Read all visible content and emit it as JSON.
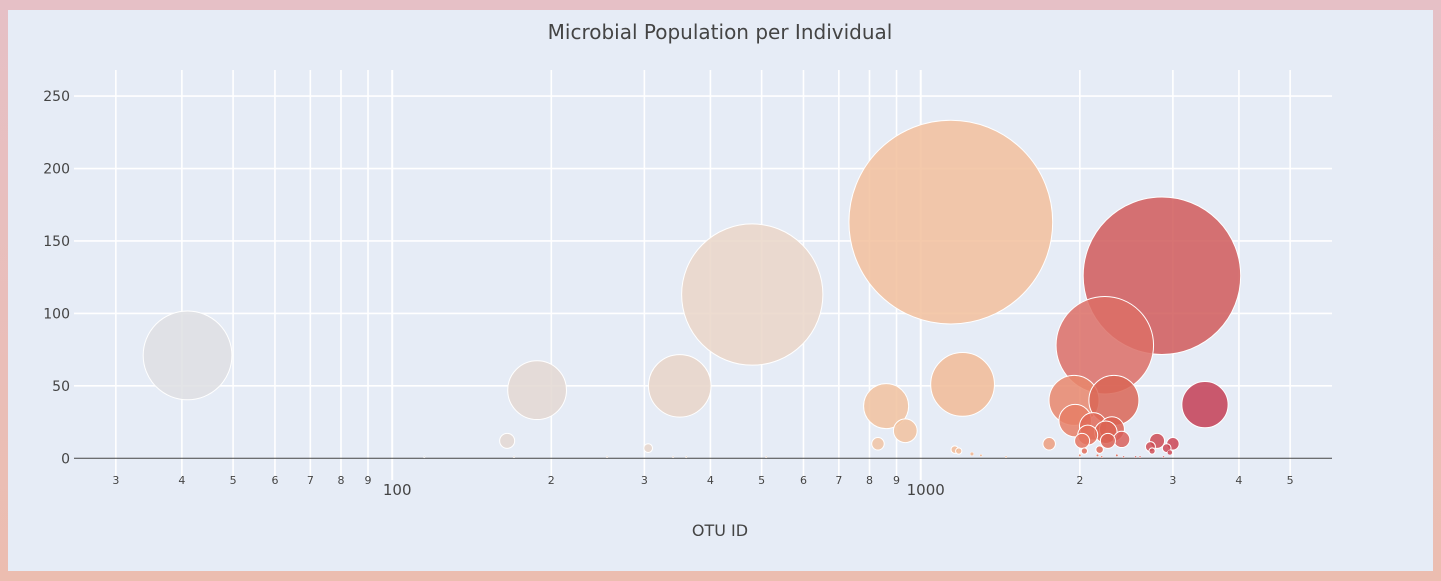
{
  "chart_data": {
    "type": "scatter",
    "title": "Microbial Population per Individual",
    "xlabel": "OTU ID",
    "ylabel": "",
    "x_scale": "log",
    "xlim": [
      25,
      6000
    ],
    "ylim": [
      -15,
      268
    ],
    "yticks": [
      0,
      50,
      100,
      150,
      200,
      250
    ],
    "xticks_major": [
      {
        "value": 100,
        "label": "100"
      },
      {
        "value": 1000,
        "label": "1000"
      }
    ],
    "xticks_minor": [
      {
        "value": 30,
        "label": "3"
      },
      {
        "value": 40,
        "label": "4"
      },
      {
        "value": 50,
        "label": "5"
      },
      {
        "value": 60,
        "label": "6"
      },
      {
        "value": 70,
        "label": "7"
      },
      {
        "value": 80,
        "label": "8"
      },
      {
        "value": 90,
        "label": "9"
      },
      {
        "value": 200,
        "label": "2"
      },
      {
        "value": 300,
        "label": "3"
      },
      {
        "value": 400,
        "label": "4"
      },
      {
        "value": 500,
        "label": "5"
      },
      {
        "value": 600,
        "label": "6"
      },
      {
        "value": 700,
        "label": "7"
      },
      {
        "value": 800,
        "label": "8"
      },
      {
        "value": 900,
        "label": "9"
      },
      {
        "value": 2000,
        "label": "2"
      },
      {
        "value": 3000,
        "label": "3"
      },
      {
        "value": 4000,
        "label": "4"
      },
      {
        "value": 5000,
        "label": "5"
      }
    ],
    "grid": true,
    "marker_colorscale": [
      "#dcdcdc",
      "#e8d5c8",
      "#f2c09c",
      "#ef9b78",
      "#e0614a",
      "#d05b5b",
      "#c33e55"
    ],
    "points": [
      {
        "x": 41,
        "y": 71,
        "size": 71,
        "color": "#dedfe3"
      },
      {
        "x": 115,
        "y": 1,
        "size": 1,
        "color": "#dedfe3"
      },
      {
        "x": 165,
        "y": 12,
        "size": 12,
        "color": "#e3d8d2"
      },
      {
        "x": 170,
        "y": 1,
        "size": 1,
        "color": "#e3d8d2"
      },
      {
        "x": 188,
        "y": 47,
        "size": 47,
        "color": "#e3d8d2"
      },
      {
        "x": 255,
        "y": 1,
        "size": 1,
        "color": "#e6d6cb"
      },
      {
        "x": 305,
        "y": 7,
        "size": 7,
        "color": "#e6d6cb"
      },
      {
        "x": 340,
        "y": 1,
        "size": 1,
        "color": "#e8d5c8"
      },
      {
        "x": 350,
        "y": 50,
        "size": 50,
        "color": "#e8d5c8"
      },
      {
        "x": 360,
        "y": 1,
        "size": 1,
        "color": "#e8d5c8"
      },
      {
        "x": 480,
        "y": 113,
        "size": 113,
        "color": "#ead6c8"
      },
      {
        "x": 510,
        "y": 1,
        "size": 1,
        "color": "#ead6c8"
      },
      {
        "x": 830,
        "y": 10,
        "size": 10,
        "color": "#f0c4a5"
      },
      {
        "x": 860,
        "y": 36,
        "size": 36,
        "color": "#f1c29f"
      },
      {
        "x": 935,
        "y": 19,
        "size": 19,
        "color": "#f1c29f"
      },
      {
        "x": 1140,
        "y": 163,
        "size": 163,
        "color": "#f2c09c"
      },
      {
        "x": 1160,
        "y": 6,
        "size": 6,
        "color": "#f2bc98"
      },
      {
        "x": 1180,
        "y": 5,
        "size": 5,
        "color": "#f2bc98"
      },
      {
        "x": 1200,
        "y": 51,
        "size": 51,
        "color": "#f1bb97"
      },
      {
        "x": 1250,
        "y": 3,
        "size": 3,
        "color": "#f0b692"
      },
      {
        "x": 1300,
        "y": 2,
        "size": 2,
        "color": "#f0b692"
      },
      {
        "x": 1450,
        "y": 1,
        "size": 1,
        "color": "#efb08c"
      },
      {
        "x": 1750,
        "y": 10,
        "size": 10,
        "color": "#ec9f7f"
      },
      {
        "x": 1950,
        "y": 40,
        "size": 40,
        "color": "#e8876c"
      },
      {
        "x": 1960,
        "y": 26,
        "size": 26,
        "color": "#e67f66"
      },
      {
        "x": 2000,
        "y": 2,
        "size": 2,
        "color": "#e67f66"
      },
      {
        "x": 2020,
        "y": 12,
        "size": 12,
        "color": "#e47460"
      },
      {
        "x": 2040,
        "y": 5,
        "size": 5,
        "color": "#e2705c"
      },
      {
        "x": 2070,
        "y": 16,
        "size": 16,
        "color": "#e26e5a"
      },
      {
        "x": 2120,
        "y": 22,
        "size": 22,
        "color": "#e06a58"
      },
      {
        "x": 2160,
        "y": 2,
        "size": 2,
        "color": "#e06a58"
      },
      {
        "x": 2180,
        "y": 6,
        "size": 6,
        "color": "#df6856"
      },
      {
        "x": 2200,
        "y": 1,
        "size": 1,
        "color": "#df6856"
      },
      {
        "x": 2230,
        "y": 78,
        "size": 78,
        "color": "#dc6f66"
      },
      {
        "x": 2240,
        "y": 18,
        "size": 18,
        "color": "#dc6454"
      },
      {
        "x": 2260,
        "y": 12,
        "size": 12,
        "color": "#db6253"
      },
      {
        "x": 2300,
        "y": 20,
        "size": 20,
        "color": "#da6152"
      },
      {
        "x": 2320,
        "y": 40,
        "size": 40,
        "color": "#d96656"
      },
      {
        "x": 2350,
        "y": 2,
        "size": 2,
        "color": "#d96656"
      },
      {
        "x": 2400,
        "y": 13,
        "size": 13,
        "color": "#d8605a"
      },
      {
        "x": 2420,
        "y": 1,
        "size": 1,
        "color": "#d8605a"
      },
      {
        "x": 2550,
        "y": 1,
        "size": 1,
        "color": "#d35b5b"
      },
      {
        "x": 2600,
        "y": 1,
        "size": 1,
        "color": "#d35b5b"
      },
      {
        "x": 2720,
        "y": 8,
        "size": 8,
        "color": "#cf4f57"
      },
      {
        "x": 2740,
        "y": 5,
        "size": 5,
        "color": "#cf4f57"
      },
      {
        "x": 2800,
        "y": 12,
        "size": 12,
        "color": "#cd4b55"
      },
      {
        "x": 2860,
        "y": 126,
        "size": 126,
        "color": "#d05b5b"
      },
      {
        "x": 2880,
        "y": 1,
        "size": 1,
        "color": "#d05b5b"
      },
      {
        "x": 2920,
        "y": 7,
        "size": 7,
        "color": "#cc4856"
      },
      {
        "x": 2960,
        "y": 4,
        "size": 4,
        "color": "#cc4856"
      },
      {
        "x": 3000,
        "y": 10,
        "size": 10,
        "color": "#ca4555"
      },
      {
        "x": 3450,
        "y": 37,
        "size": 37,
        "color": "#c33e55"
      }
    ]
  }
}
